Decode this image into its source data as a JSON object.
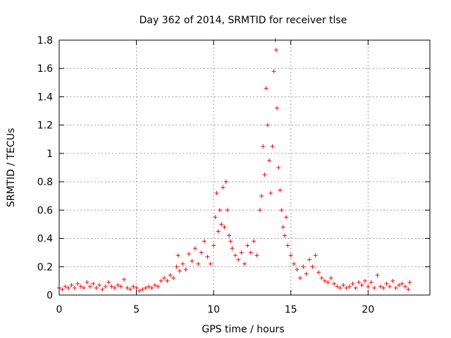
{
  "chart_data": {
    "type": "scatter",
    "title": "Day 362 of 2014, SRMTID for receiver tlse",
    "xlabel": "GPS time / hours",
    "ylabel": "SRMTID / TECUs",
    "xlim": [
      0,
      24
    ],
    "ylim": [
      0,
      1.8
    ],
    "x_ticks": [
      0,
      5,
      10,
      15,
      20
    ],
    "y_ticks": [
      0,
      0.2,
      0.4,
      0.6,
      0.8,
      1,
      1.2,
      1.4,
      1.6,
      1.8
    ],
    "x_tick_labels": [
      "0",
      "5",
      "10",
      "15",
      "20"
    ],
    "y_tick_labels": [
      "0",
      "0.2",
      "0.4",
      "0.6",
      "0.8",
      "1",
      "1.2",
      "1.4",
      "1.6",
      "1.8"
    ],
    "grid": true,
    "marker": "plus",
    "color": "#ff0000",
    "series": [
      {
        "name": "SRMTID",
        "points": [
          [
            0.0,
            0.05
          ],
          [
            0.2,
            0.04
          ],
          [
            0.4,
            0.06
          ],
          [
            0.6,
            0.05
          ],
          [
            0.8,
            0.07
          ],
          [
            1.0,
            0.05
          ],
          [
            1.2,
            0.08
          ],
          [
            1.4,
            0.06
          ],
          [
            1.6,
            0.05
          ],
          [
            1.8,
            0.09
          ],
          [
            2.0,
            0.06
          ],
          [
            2.2,
            0.08
          ],
          [
            2.4,
            0.05
          ],
          [
            2.6,
            0.07
          ],
          [
            2.8,
            0.04
          ],
          [
            3.0,
            0.06
          ],
          [
            3.2,
            0.09
          ],
          [
            3.4,
            0.06
          ],
          [
            3.6,
            0.05
          ],
          [
            3.8,
            0.07
          ],
          [
            4.0,
            0.06
          ],
          [
            4.2,
            0.11
          ],
          [
            4.4,
            0.05
          ],
          [
            4.6,
            0.04
          ],
          [
            4.8,
            0.06
          ],
          [
            5.0,
            0.05
          ],
          [
            5.2,
            0.03
          ],
          [
            5.4,
            0.04
          ],
          [
            5.6,
            0.05
          ],
          [
            5.8,
            0.06
          ],
          [
            6.0,
            0.05
          ],
          [
            6.2,
            0.07
          ],
          [
            6.4,
            0.06
          ],
          [
            6.6,
            0.1
          ],
          [
            6.8,
            0.12
          ],
          [
            7.0,
            0.1
          ],
          [
            7.2,
            0.14
          ],
          [
            7.4,
            0.12
          ],
          [
            7.6,
            0.2
          ],
          [
            7.7,
            0.28
          ],
          [
            7.8,
            0.17
          ],
          [
            8.0,
            0.22
          ],
          [
            8.2,
            0.18
          ],
          [
            8.4,
            0.29
          ],
          [
            8.6,
            0.24
          ],
          [
            8.8,
            0.33
          ],
          [
            9.0,
            0.22
          ],
          [
            9.2,
            0.3
          ],
          [
            9.4,
            0.38
          ],
          [
            9.6,
            0.27
          ],
          [
            9.8,
            0.22
          ],
          [
            10.0,
            0.35
          ],
          [
            10.1,
            0.55
          ],
          [
            10.2,
            0.72
          ],
          [
            10.3,
            0.45
          ],
          [
            10.4,
            0.6
          ],
          [
            10.5,
            0.5
          ],
          [
            10.6,
            0.76
          ],
          [
            10.7,
            0.48
          ],
          [
            10.8,
            0.8
          ],
          [
            10.9,
            0.6
          ],
          [
            11.0,
            0.42
          ],
          [
            11.1,
            0.38
          ],
          [
            11.2,
            0.33
          ],
          [
            11.4,
            0.28
          ],
          [
            11.6,
            0.25
          ],
          [
            11.8,
            0.3
          ],
          [
            12.0,
            0.22
          ],
          [
            12.2,
            0.35
          ],
          [
            12.4,
            0.3
          ],
          [
            12.6,
            0.38
          ],
          [
            12.8,
            0.28
          ],
          [
            13.0,
            0.6
          ],
          [
            13.1,
            0.7
          ],
          [
            13.2,
            1.05
          ],
          [
            13.3,
            0.85
          ],
          [
            13.4,
            1.46
          ],
          [
            13.5,
            1.2
          ],
          [
            13.6,
            0.95
          ],
          [
            13.7,
            0.72
          ],
          [
            13.8,
            1.05
          ],
          [
            13.9,
            1.58
          ],
          [
            14.0,
            1.8
          ],
          [
            14.05,
            1.73
          ],
          [
            14.1,
            1.32
          ],
          [
            14.2,
            0.9
          ],
          [
            14.3,
            0.74
          ],
          [
            14.4,
            0.6
          ],
          [
            14.5,
            0.48
          ],
          [
            14.6,
            0.42
          ],
          [
            14.7,
            0.55
          ],
          [
            14.8,
            0.35
          ],
          [
            15.0,
            0.28
          ],
          [
            15.2,
            0.22
          ],
          [
            15.4,
            0.18
          ],
          [
            15.6,
            0.12
          ],
          [
            15.8,
            0.2
          ],
          [
            16.0,
            0.15
          ],
          [
            16.2,
            0.25
          ],
          [
            16.4,
            0.2
          ],
          [
            16.6,
            0.28
          ],
          [
            16.8,
            0.16
          ],
          [
            17.0,
            0.12
          ],
          [
            17.2,
            0.1
          ],
          [
            17.4,
            0.09
          ],
          [
            17.6,
            0.12
          ],
          [
            17.8,
            0.08
          ],
          [
            18.0,
            0.06
          ],
          [
            18.2,
            0.05
          ],
          [
            18.4,
            0.07
          ],
          [
            18.6,
            0.05
          ],
          [
            18.8,
            0.06
          ],
          [
            19.0,
            0.08
          ],
          [
            19.2,
            0.05
          ],
          [
            19.4,
            0.09
          ],
          [
            19.6,
            0.07
          ],
          [
            19.8,
            0.1
          ],
          [
            20.0,
            0.06
          ],
          [
            20.2,
            0.09
          ],
          [
            20.4,
            0.05
          ],
          [
            20.6,
            0.14
          ],
          [
            20.8,
            0.06
          ],
          [
            21.0,
            0.05
          ],
          [
            21.2,
            0.08
          ],
          [
            21.4,
            0.06
          ],
          [
            21.6,
            0.1
          ],
          [
            21.8,
            0.05
          ],
          [
            22.0,
            0.07
          ],
          [
            22.2,
            0.08
          ],
          [
            22.4,
            0.06
          ],
          [
            22.6,
            0.04
          ],
          [
            22.7,
            0.09
          ]
        ]
      }
    ]
  }
}
